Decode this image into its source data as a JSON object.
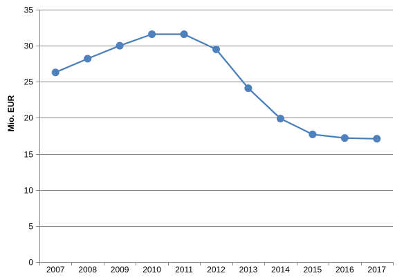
{
  "chart_data": {
    "type": "line",
    "title": "",
    "xlabel": "",
    "ylabel": "Mio. EUR",
    "categories": [
      "2007",
      "2008",
      "2009",
      "2010",
      "2011",
      "2012",
      "2013",
      "2014",
      "2015",
      "2016",
      "2017"
    ],
    "series": [
      {
        "values": [
          26.3,
          28.2,
          30.0,
          31.6,
          31.6,
          29.5,
          24.1,
          19.9,
          17.7,
          17.2,
          17.1
        ]
      }
    ],
    "ylim": [
      0,
      35
    ],
    "yticks": [
      0,
      5,
      10,
      15,
      20,
      25,
      30,
      35
    ],
    "grid": "horizontal",
    "legend": "none",
    "colors": {
      "line": "#4a7ebb",
      "marker": "#4f81bd",
      "grid": "#868686",
      "axis": "#868686"
    }
  }
}
